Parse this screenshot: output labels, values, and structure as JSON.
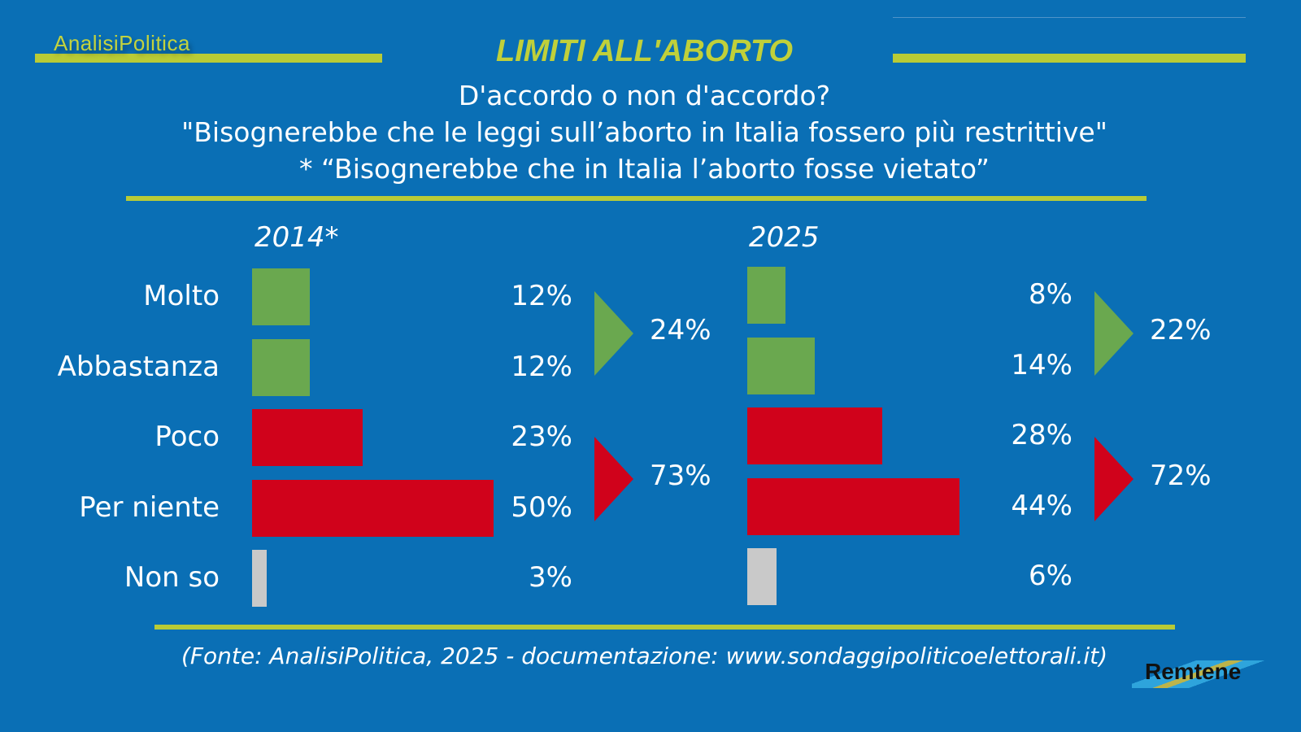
{
  "header": {
    "brand": "AnalisiPolitica",
    "title": "LIMITI ALL'ABORTO",
    "subtitle_lines": [
      "D'accordo o non d'accordo?",
      "\"Bisognerebbe che le leggi sull’aborto in Italia fossero più restrittive\"",
      "* “Bisognerebbe che in Italia l’aborto fosse vietato”"
    ]
  },
  "chart_data": [
    {
      "type": "bar",
      "orientation": "horizontal",
      "title": "2014*",
      "categories": [
        "Molto",
        "Abbastanza",
        "Poco",
        "Per niente",
        "Non so"
      ],
      "values": [
        12,
        12,
        23,
        50,
        3
      ],
      "labels": [
        "12%",
        "12%",
        "23%",
        "50%",
        "3%"
      ],
      "groups": [
        {
          "name": "agree",
          "label": "24%",
          "value": 24
        },
        {
          "name": "disagree",
          "label": "73%",
          "value": 73
        }
      ]
    },
    {
      "type": "bar",
      "orientation": "horizontal",
      "title": "2025",
      "categories": [
        "Molto",
        "Abbastanza",
        "Poco",
        "Per niente",
        "Non so"
      ],
      "values": [
        8,
        14,
        28,
        44,
        6
      ],
      "labels": [
        "8%",
        "14%",
        "28%",
        "44%",
        "6%"
      ],
      "groups": [
        {
          "name": "agree",
          "label": "22%",
          "value": 22
        },
        {
          "name": "disagree",
          "label": "72%",
          "value": 72
        }
      ]
    }
  ],
  "colors": {
    "agree": "#6aa84f",
    "disagree": "#d0021b",
    "unknown": "#c9c9c9",
    "accent": "#b9cb36",
    "background": "#0a6fb5"
  },
  "footer": {
    "source": "(Fonte: AnalisiPolitica, 2025 - documentazione: www.sondaggipoliticoelettorali.it)",
    "partner": "Remtene"
  }
}
